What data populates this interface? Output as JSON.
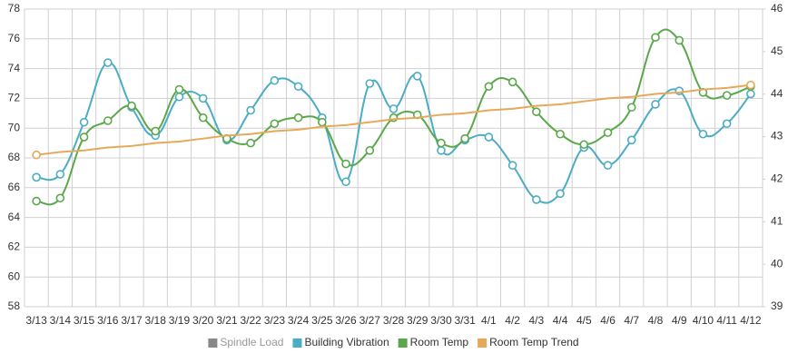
{
  "chart_data": {
    "type": "line",
    "categories": [
      "3/13",
      "3/14",
      "3/15",
      "3/16",
      "3/17",
      "3/18",
      "3/19",
      "3/20",
      "3/21",
      "3/22",
      "3/23",
      "3/24",
      "3/25",
      "3/26",
      "3/27",
      "3/28",
      "3/29",
      "3/30",
      "3/31",
      "4/1",
      "4/2",
      "4/3",
      "4/4",
      "4/5",
      "4/6",
      "4/7",
      "4/8",
      "4/9",
      "4/10",
      "4/11",
      "4/12"
    ],
    "series": [
      {
        "name": "Spindle Load",
        "color": "#888888",
        "hidden": true,
        "axis": "y2",
        "values": [
          null,
          null,
          null,
          null,
          null,
          null,
          null,
          null,
          null,
          null,
          null,
          null,
          null,
          null,
          null,
          null,
          null,
          null,
          null,
          null,
          null,
          null,
          null,
          null,
          null,
          null,
          null,
          null,
          null,
          null,
          null
        ]
      },
      {
        "name": "Building Vibration",
        "color": "#4bacc6",
        "smooth": true,
        "values": [
          66.7,
          66.9,
          70.4,
          74.4,
          71.4,
          69.5,
          72.1,
          72.0,
          69.2,
          71.2,
          73.2,
          72.8,
          70.7,
          66.4,
          73.0,
          71.3,
          73.5,
          68.5,
          69.2,
          69.4,
          67.5,
          65.2,
          65.6,
          68.7,
          67.5,
          69.2,
          71.6,
          72.5,
          69.6,
          70.3,
          72.3
        ]
      },
      {
        "name": "Room Temp",
        "color": "#5aa84a",
        "smooth": true,
        "values": [
          65.1,
          65.3,
          69.4,
          70.5,
          71.5,
          69.8,
          72.6,
          70.7,
          69.3,
          69.0,
          70.3,
          70.7,
          70.4,
          67.6,
          68.5,
          70.7,
          70.9,
          69.0,
          69.3,
          72.8,
          73.1,
          71.1,
          69.6,
          68.9,
          69.7,
          71.4,
          76.1,
          75.9,
          72.4,
          72.2,
          72.8
        ]
      },
      {
        "name": "Room Temp Trend",
        "color": "#e8a85a",
        "smooth": false,
        "markers": "ends",
        "values": [
          68.2,
          68.4,
          68.5,
          68.7,
          68.8,
          69.0,
          69.1,
          69.3,
          69.5,
          69.6,
          69.8,
          69.9,
          70.1,
          70.2,
          70.4,
          70.6,
          70.7,
          70.9,
          71.0,
          71.2,
          71.3,
          71.5,
          71.6,
          71.8,
          72.0,
          72.1,
          72.3,
          72.4,
          72.6,
          72.7,
          72.9
        ]
      }
    ],
    "ylim": [
      58,
      78
    ],
    "yticks": [
      58,
      60,
      62,
      64,
      66,
      68,
      70,
      72,
      74,
      76,
      78
    ],
    "y2lim": [
      39,
      46
    ],
    "y2ticks": [
      39,
      40,
      41,
      42,
      43,
      44,
      45,
      46
    ],
    "grid": true,
    "legend": "bottom"
  }
}
